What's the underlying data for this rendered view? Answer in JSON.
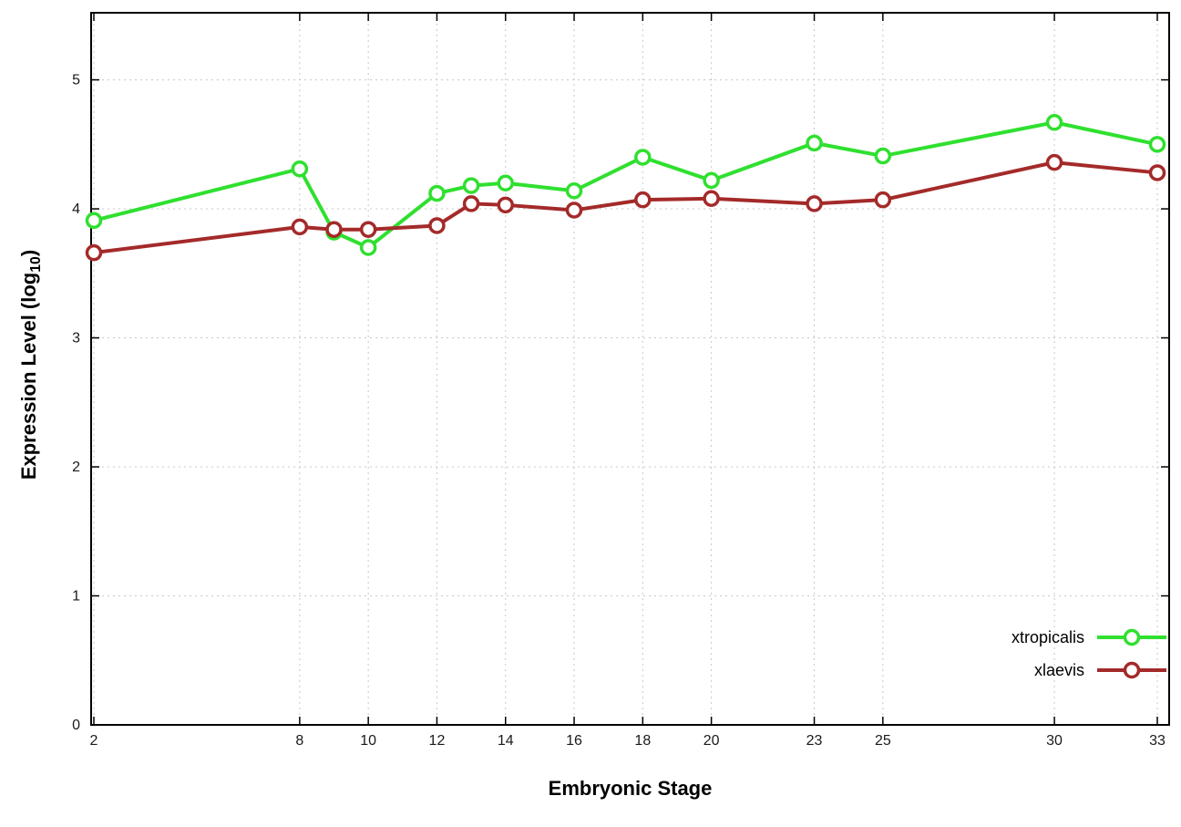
{
  "labels": {
    "xlabel": "Embryonic Stage",
    "ylabel_prefix": "Expression Level (log",
    "ylabel_sub": "10",
    "ylabel_suffix": ")"
  },
  "chart_data": {
    "type": "line",
    "title": "",
    "xlabel": "Embryonic Stage",
    "ylabel": "Expression Level (log10)",
    "x": [
      2,
      8,
      9,
      10,
      12,
      13,
      14,
      16,
      18,
      20,
      23,
      25,
      30,
      33
    ],
    "xticks": [
      2,
      8,
      10,
      12,
      14,
      16,
      18,
      20,
      23,
      25,
      30,
      33
    ],
    "yticks": [
      0,
      1,
      2,
      3,
      4,
      5
    ],
    "xlim": [
      2,
      33
    ],
    "ylim": [
      0,
      5.52
    ],
    "grid": true,
    "grid_color": "#c8c8c8",
    "axis_color": "#000000",
    "tick_label_color": "#1a1a1a",
    "legend_position": "bottom-right",
    "series": [
      {
        "name": "xtropicalis",
        "color": "#2fe02f",
        "values": [
          3.91,
          4.31,
          3.82,
          3.7,
          4.12,
          4.18,
          4.2,
          4.14,
          4.4,
          4.22,
          4.51,
          4.41,
          4.67,
          4.5
        ]
      },
      {
        "name": "xlaevis",
        "color": "#a42a2a",
        "values": [
          3.66,
          3.86,
          3.84,
          3.84,
          3.87,
          4.04,
          4.03,
          3.99,
          4.07,
          4.08,
          4.04,
          4.07,
          4.36,
          4.28
        ]
      }
    ]
  }
}
